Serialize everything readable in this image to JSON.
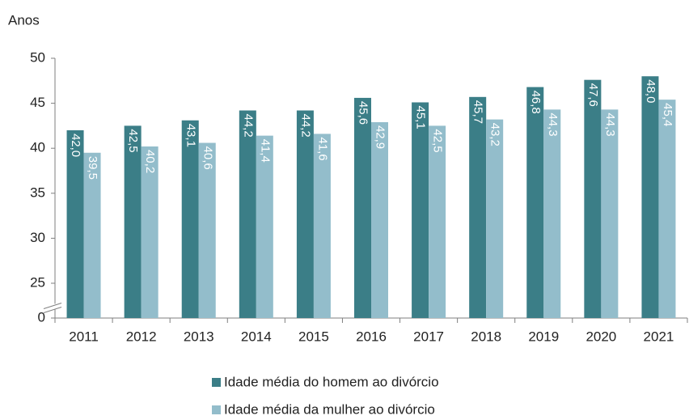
{
  "chart_data": {
    "type": "bar",
    "y_label": "Anos",
    "categories": [
      "2011",
      "2012",
      "2013",
      "2014",
      "2015",
      "2016",
      "2017",
      "2018",
      "2019",
      "2020",
      "2021"
    ],
    "series": [
      {
        "name": "Idade média do homem ao divórcio",
        "color": "#3b7e87",
        "values": [
          42.0,
          42.5,
          43.1,
          44.2,
          44.2,
          45.6,
          45.1,
          45.7,
          46.8,
          47.6,
          48.0
        ],
        "value_labels": [
          "42,0",
          "42,5",
          "43,1",
          "44,2",
          "44,2",
          "45,6",
          "45,1",
          "45,7",
          "46,8",
          "47,6",
          "48,0"
        ]
      },
      {
        "name": "Idade média da mulher ao divórcio",
        "color": "#93bdcb",
        "values": [
          39.5,
          40.2,
          40.6,
          41.4,
          41.6,
          42.9,
          42.5,
          43.2,
          44.3,
          44.3,
          45.4
        ],
        "value_labels": [
          "39,5",
          "40,2",
          "40,6",
          "41,4",
          "41,6",
          "42,9",
          "42,5",
          "43,2",
          "44,3",
          "44,3",
          "45,4"
        ]
      }
    ],
    "ylim": [
      0,
      50
    ],
    "yticks": [
      0,
      25,
      30,
      35,
      40,
      45,
      50
    ],
    "axis_break": true,
    "legend": "bottom"
  }
}
